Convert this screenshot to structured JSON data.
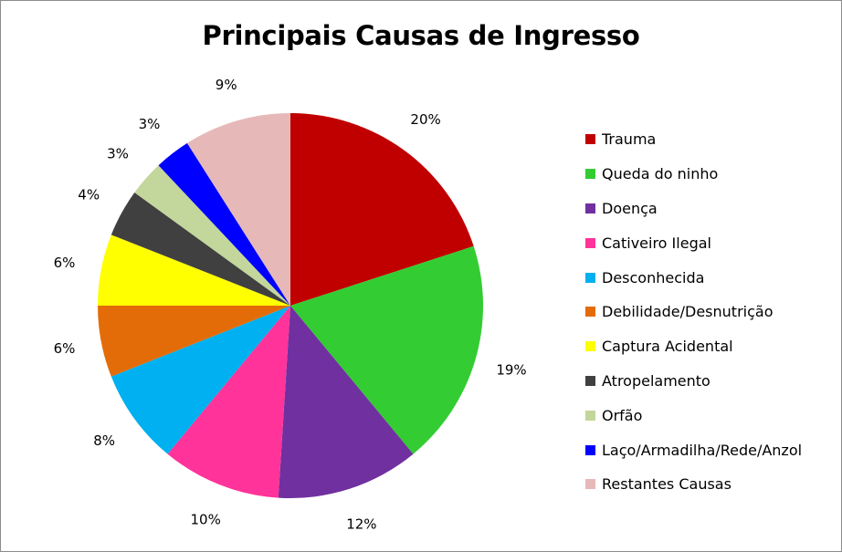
{
  "chart_data": {
    "type": "pie",
    "title": "Principais Causas de Ingresso",
    "legend_position": "right",
    "slices": [
      {
        "name": "Trauma",
        "value": 20,
        "label": "20%",
        "color": "#c00000"
      },
      {
        "name": "Queda do ninho",
        "value": 19,
        "label": "19%",
        "color": "#33cc33"
      },
      {
        "name": "Doença",
        "value": 12,
        "label": "12%",
        "color": "#7030a0"
      },
      {
        "name": "Cativeiro Ilegal",
        "value": 10,
        "label": "10%",
        "color": "#ff3399"
      },
      {
        "name": "Desconhecida",
        "value": 8,
        "label": "8%",
        "color": "#00b0f0"
      },
      {
        "name": "Debilidade/Desnutrição",
        "value": 6,
        "label": "6%",
        "color": "#e36c09"
      },
      {
        "name": "Captura Acidental",
        "value": 6,
        "label": "6%",
        "color": "#ffff00"
      },
      {
        "name": "Atropelamento",
        "value": 4,
        "label": "4%",
        "color": "#404040"
      },
      {
        "name": "Orfão",
        "value": 3,
        "label": "3%",
        "color": "#c3d69b"
      },
      {
        "name": "Laço/Armadilha/Rede/Anzol",
        "value": 3,
        "label": "3%",
        "color": "#0000ff"
      },
      {
        "name": "Restantes Causas",
        "value": 9,
        "label": "9%",
        "color": "#e6b9b8"
      }
    ]
  }
}
